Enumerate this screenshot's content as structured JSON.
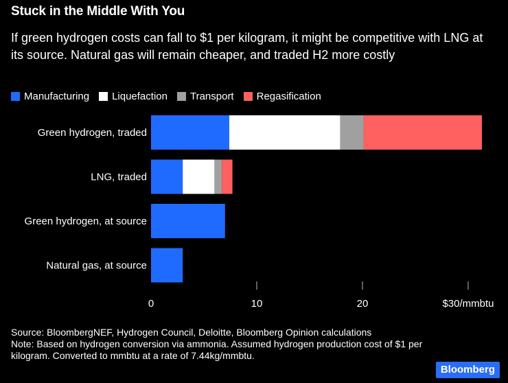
{
  "title": "Stuck in the Middle With You",
  "subtitle": "If green hydrogen costs can fall to $1 per kilogram, it might be competitive with LNG at its source. Natural gas will remain cheaper, and traded H2 more costly",
  "legend": [
    {
      "label": "Manufacturing",
      "color": "#1f6bff"
    },
    {
      "label": "Liquefaction",
      "color": "#ffffff"
    },
    {
      "label": "Transport",
      "color": "#a0a0a0"
    },
    {
      "label": "Regasification",
      "color": "#ff6060"
    }
  ],
  "chart_data": {
    "type": "bar",
    "orientation": "horizontal",
    "stacked": true,
    "categories": [
      "Green hydrogen, traded",
      "LNG, traded",
      "Green hydrogen, at source",
      "Natural gas, at source"
    ],
    "series": [
      {
        "name": "Manufacturing",
        "color": "#1f6bff",
        "values": [
          7.4,
          3.0,
          7.0,
          3.0
        ]
      },
      {
        "name": "Liquefaction",
        "color": "#ffffff",
        "values": [
          10.5,
          3.0,
          0,
          0
        ]
      },
      {
        "name": "Transport",
        "color": "#a0a0a0",
        "values": [
          2.2,
          0.7,
          0,
          0
        ]
      },
      {
        "name": "Regasification",
        "color": "#ff6060",
        "values": [
          11.2,
          1.0,
          0,
          0
        ]
      }
    ],
    "xlim": [
      0,
      30
    ],
    "xticks": [
      {
        "value": 0,
        "label": "0"
      },
      {
        "value": 10,
        "label": "10"
      },
      {
        "value": 20,
        "label": "20"
      },
      {
        "value": 30,
        "label": "$30/mmbtu"
      }
    ],
    "grid": false
  },
  "footer": {
    "source": "Source: BloombergNEF, Hydrogen Council, Deloitte, Bloomberg Opinion calculations",
    "note": "Note: Based on hydrogen conversion via ammonia. Assumed hydrogen production cost of $1 per kilogram. Converted to mmbtu at a rate of 7.44kg/mmbtu."
  },
  "brand": "Bloomberg"
}
